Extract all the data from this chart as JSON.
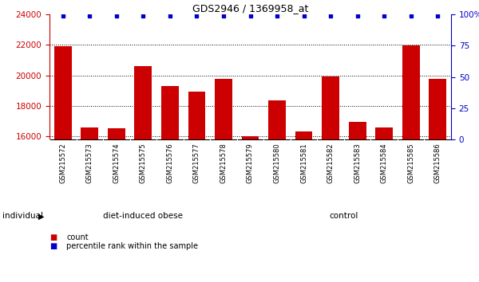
{
  "title": "GDS2946 / 1369958_at",
  "samples": [
    "GSM215572",
    "GSM215573",
    "GSM215574",
    "GSM215575",
    "GSM215576",
    "GSM215577",
    "GSM215578",
    "GSM215579",
    "GSM215580",
    "GSM215581",
    "GSM215582",
    "GSM215583",
    "GSM215584",
    "GSM215585",
    "GSM215586"
  ],
  "counts": [
    21900,
    16600,
    16550,
    20600,
    19300,
    18950,
    19750,
    16020,
    18350,
    16320,
    19950,
    16950,
    16600,
    21950,
    19750
  ],
  "percentile_ranks": [
    99,
    99,
    99,
    99,
    99,
    99,
    99,
    99,
    99,
    99,
    99,
    99,
    99,
    99,
    99
  ],
  "ylim_left": [
    15800,
    24000
  ],
  "ylim_right": [
    0,
    100
  ],
  "yticks_left": [
    16000,
    18000,
    20000,
    22000,
    24000
  ],
  "yticks_right": [
    0,
    25,
    50,
    75,
    100
  ],
  "groups": [
    {
      "label": "diet-induced obese",
      "start": 0,
      "end": 7
    },
    {
      "label": "control",
      "start": 7,
      "end": 15
    }
  ],
  "group_row_color": "#66ee66",
  "bar_color": "#cc0000",
  "dot_color": "#0000cc",
  "tick_label_color": "#cc0000",
  "right_axis_color": "#0000cc",
  "bg_color": "#ffffff",
  "xlabel_area_color": "#c8c8c8",
  "individual_label": "individual",
  "legend_count_label": "count",
  "legend_pct_label": "percentile rank within the sample"
}
